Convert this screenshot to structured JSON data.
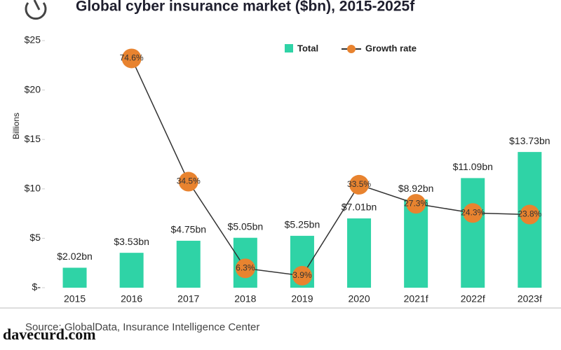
{
  "chart_data": {
    "type": "bar",
    "title": "Global cyber insurance market ($bn), 2015-2025f",
    "y_label": "Billions",
    "source": "Source: GlobalData, Insurance Intelligence Center",
    "watermark": "davecurd.com",
    "categories": [
      "2015",
      "2016",
      "2017",
      "2018",
      "2019",
      "2020",
      "2021f",
      "2022f",
      "2023f"
    ],
    "series": [
      {
        "name": "Total",
        "color": "#2fd3a6",
        "values": [
          2.02,
          3.53,
          4.75,
          5.05,
          5.25,
          7.01,
          8.92,
          11.09,
          13.73
        ],
        "value_labels": [
          "$2.02bn",
          "$3.53bn",
          "$4.75bn",
          "$5.05bn",
          "$5.25bn",
          "$7.01bn",
          "$8.92bn",
          "$11.09bn",
          "$13.73bn"
        ]
      },
      {
        "name": "Growth rate",
        "color": "#e8832f",
        "line_color": "#333333",
        "axis": "y2",
        "values": [
          null,
          74.6,
          34.5,
          6.3,
          3.9,
          33.5,
          27.3,
          24.3,
          23.8
        ],
        "value_labels": [
          null,
          "74.6%",
          "34.5%",
          "6.3%",
          "3.9%",
          "33.5%",
          "27.3%",
          "24.3%",
          "23.8%"
        ]
      }
    ],
    "ylim": [
      0,
      25
    ],
    "yticks": [
      {
        "value": 0,
        "label": "$-"
      },
      {
        "value": 5,
        "label": "$5"
      },
      {
        "value": 10,
        "label": "$10"
      },
      {
        "value": 15,
        "label": "$15"
      },
      {
        "value": 20,
        "label": "$20"
      },
      {
        "value": 25,
        "label": "$25"
      }
    ],
    "y2lim": [
      0,
      80.4
    ],
    "legend": "top"
  }
}
